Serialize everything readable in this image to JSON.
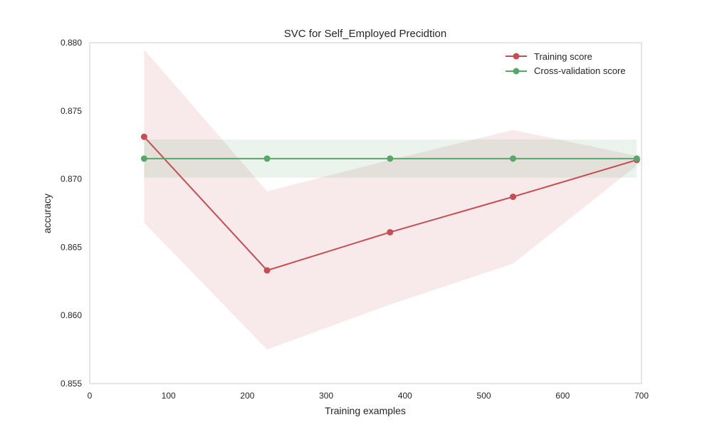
{
  "chart_data": {
    "type": "line",
    "title": "SVC for Self_Employed Precidtion",
    "xlabel": "Training examples",
    "ylabel": "accuracy",
    "xlim": [
      0,
      700
    ],
    "ylim": [
      0.855,
      0.88
    ],
    "xticks": [
      0,
      100,
      200,
      300,
      400,
      500,
      600,
      700
    ],
    "yticks": [
      0.855,
      0.86,
      0.865,
      0.87,
      0.875,
      0.88
    ],
    "xtick_labels": [
      "0",
      "100",
      "200",
      "300",
      "400",
      "500",
      "600",
      "700"
    ],
    "ytick_labels": [
      "0.855",
      "0.860",
      "0.865",
      "0.870",
      "0.875",
      "0.880"
    ],
    "grid": false,
    "legend_position": "top-right",
    "x": [
      69,
      225,
      381,
      537,
      694
    ],
    "series": [
      {
        "name": "Training score",
        "color": "#c44e52",
        "values": [
          0.8731,
          0.8633,
          0.8661,
          0.8687,
          0.8714
        ],
        "band_upper": [
          0.8795,
          0.8691,
          0.8714,
          0.8736,
          0.8717
        ],
        "band_lower": [
          0.8668,
          0.8575,
          0.8608,
          0.8638,
          0.871
        ]
      },
      {
        "name": "Cross-validation score",
        "color": "#55a868",
        "values": [
          0.8715,
          0.8715,
          0.8715,
          0.8715,
          0.8715
        ],
        "band_upper": [
          0.8729,
          0.8729,
          0.8729,
          0.8729,
          0.8729
        ],
        "band_lower": [
          0.8701,
          0.8701,
          0.8701,
          0.8701,
          0.8701
        ]
      }
    ]
  }
}
